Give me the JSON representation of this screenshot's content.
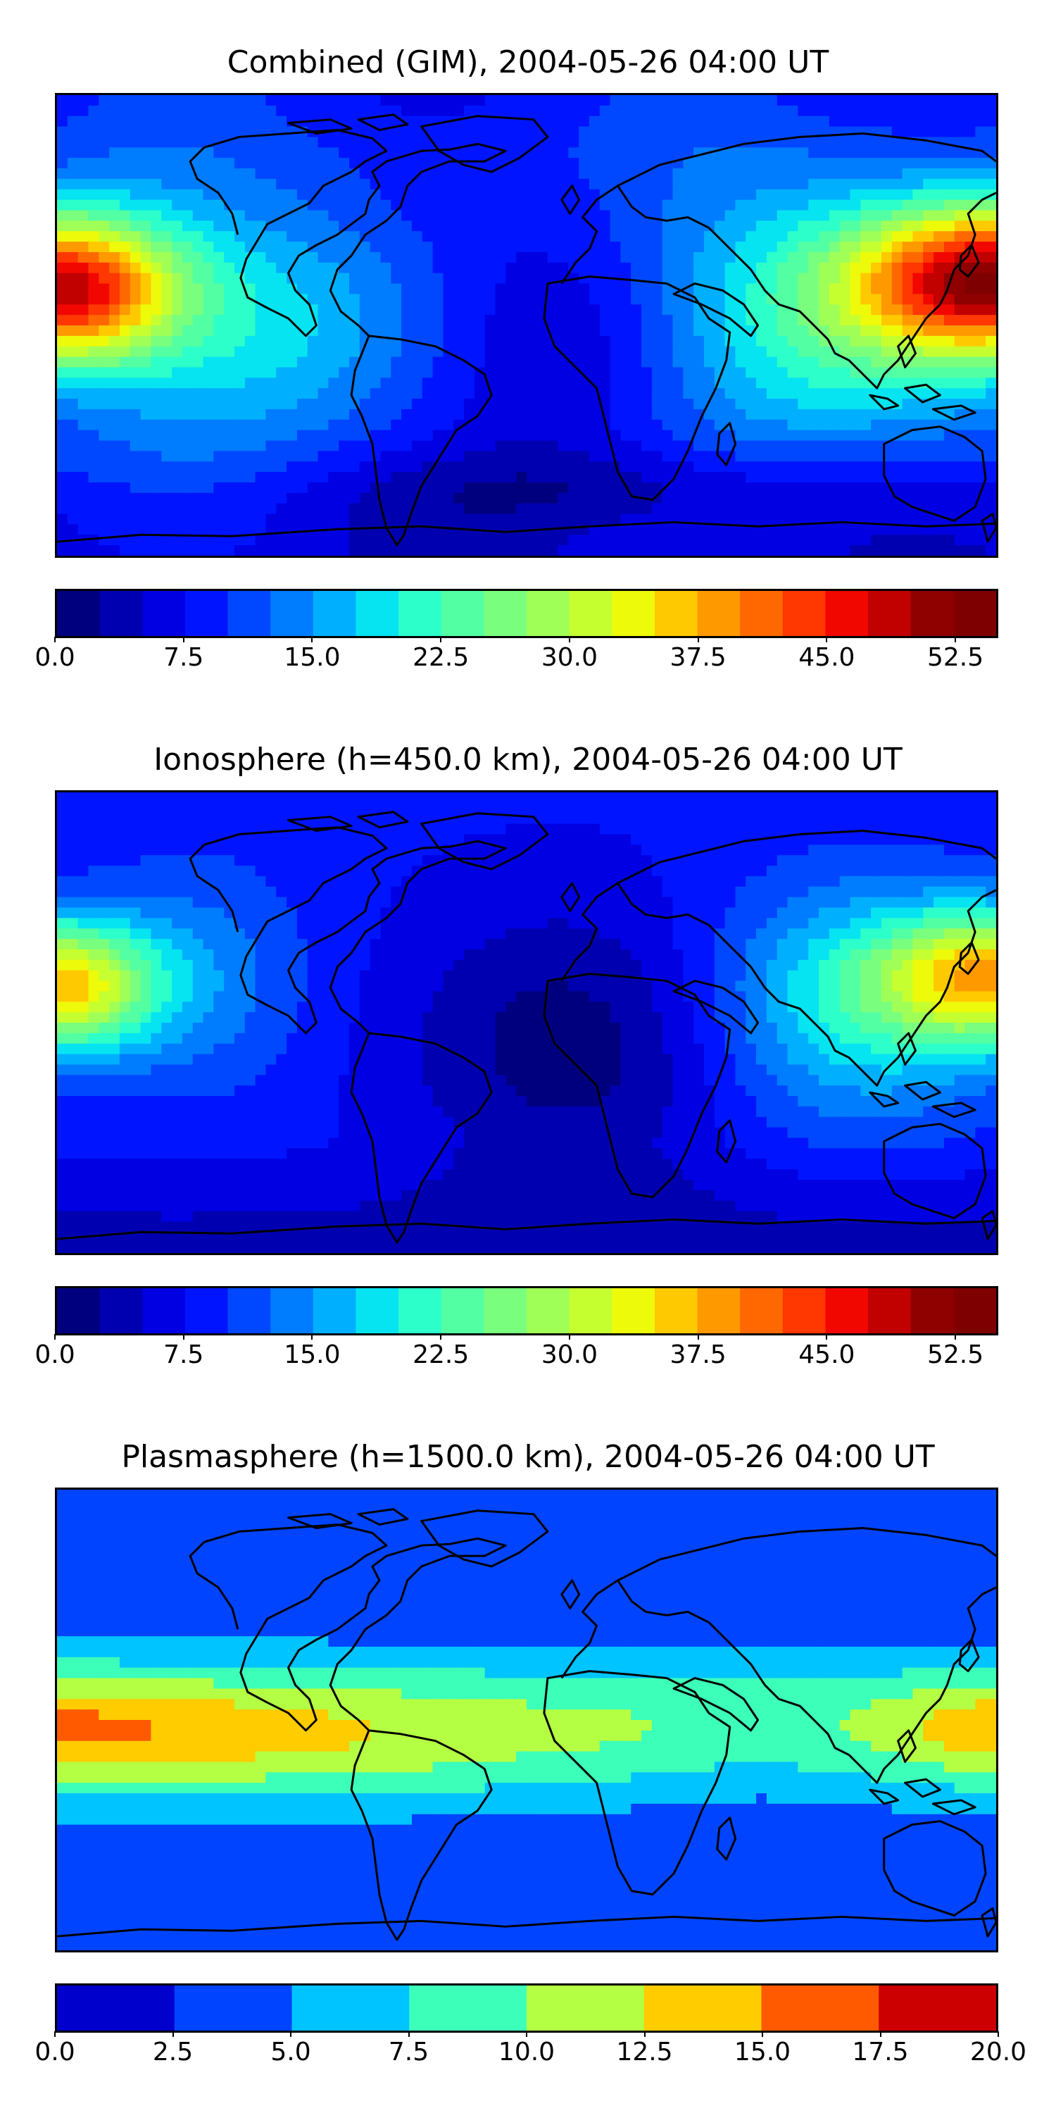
{
  "chart_data": [
    {
      "type": "heatmap",
      "title": "Combined (GIM), 2004-05-26 04:00 UT",
      "colorbar": {
        "min": 0.0,
        "max": 55.0,
        "levels": 22,
        "tick_labels": [
          "0.0",
          "7.5",
          "15.0",
          "22.5",
          "30.0",
          "37.5",
          "45.0",
          "52.5"
        ],
        "tick_values": [
          0.0,
          7.5,
          15.0,
          22.5,
          30.0,
          37.5,
          45.0,
          52.5
        ]
      },
      "xlabel": "",
      "ylabel": "",
      "grid": false
    },
    {
      "type": "heatmap",
      "title": "Ionosphere  (h=450.0 km), 2004-05-26 04:00 UT",
      "colorbar": {
        "min": 0.0,
        "max": 55.0,
        "levels": 22,
        "tick_labels": [
          "0.0",
          "7.5",
          "15.0",
          "22.5",
          "30.0",
          "37.5",
          "45.0",
          "52.5"
        ],
        "tick_values": [
          0.0,
          7.5,
          15.0,
          22.5,
          30.0,
          37.5,
          45.0,
          52.5
        ]
      },
      "xlabel": "",
      "ylabel": "",
      "grid": false
    },
    {
      "type": "heatmap",
      "title": "Plasmasphere (h=1500.0 km), 2004-05-26 04:00 UT",
      "colorbar": {
        "min": 0.0,
        "max": 20.0,
        "levels": 8,
        "tick_labels": [
          "0.0",
          "2.5",
          "5.0",
          "7.5",
          "10.0",
          "12.5",
          "15.0",
          "17.5",
          "20.0"
        ],
        "tick_values": [
          0.0,
          2.5,
          5.0,
          7.5,
          10.0,
          12.5,
          15.0,
          17.5,
          20.0
        ]
      },
      "xlabel": "",
      "ylabel": "",
      "grid": false
    }
  ],
  "colors": {
    "jet22": [
      "#00007f",
      "#0000b0",
      "#0000e3",
      "#0014ff",
      "#0048ff",
      "#007cff",
      "#00b0ff",
      "#06e4f1",
      "#2cffca",
      "#53ffa3",
      "#79ff7d",
      "#a0ff56",
      "#c6ff30",
      "#edfa09",
      "#ffc900",
      "#ff9900",
      "#ff6800",
      "#ff3700",
      "#f20700",
      "#c10000",
      "#8f0000",
      "#7f0000"
    ],
    "jet8": [
      "#0000cd",
      "#0044ff",
      "#00c4ff",
      "#3cffba",
      "#b4ff43",
      "#ffcc00",
      "#ff5a00",
      "#cc0000"
    ],
    "coast": "#000000"
  }
}
